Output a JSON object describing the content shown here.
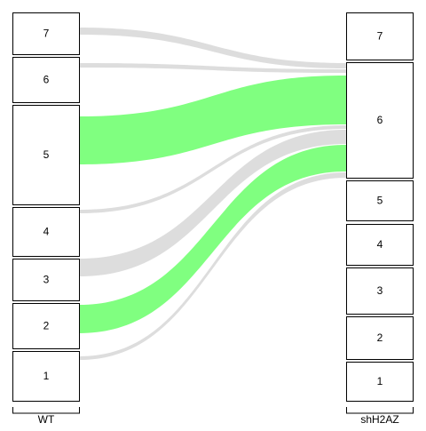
{
  "axes": [
    {
      "label": "WT",
      "nodes": [
        "7",
        "6",
        "5",
        "4",
        "3",
        "2",
        "1"
      ]
    },
    {
      "label": "shH2AZ",
      "nodes": [
        "7",
        "6",
        "5",
        "4",
        "3",
        "2",
        "1"
      ]
    }
  ],
  "colors": {
    "highlight": "#80ff80",
    "background_flow": "#dddddd",
    "node_border": "#000000",
    "node_fill": "#ffffff"
  },
  "flows": [
    {
      "from": "7",
      "to": "6",
      "highlighted": false
    },
    {
      "from": "6",
      "to": "6",
      "highlighted": false
    },
    {
      "from": "5",
      "to": "6",
      "highlighted": true
    },
    {
      "from": "4",
      "to": "6",
      "highlighted": false
    },
    {
      "from": "3",
      "to": "6",
      "highlighted": false
    },
    {
      "from": "2",
      "to": "6",
      "highlighted": true
    },
    {
      "from": "1",
      "to": "6",
      "highlighted": false
    }
  ]
}
